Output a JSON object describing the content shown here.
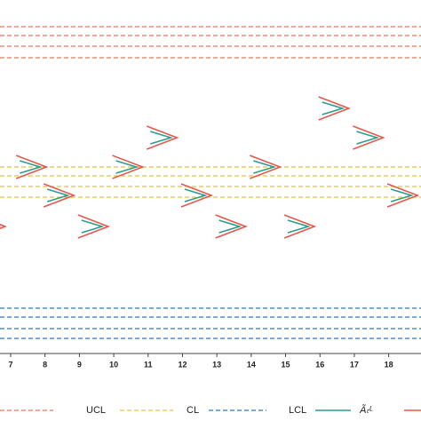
{
  "chart_data": {
    "type": "control",
    "xlim": [
      6.69,
      18.94
    ],
    "ylim": [
      0,
      100
    ],
    "xticks": [
      7,
      8,
      9,
      10,
      11,
      12,
      13,
      14,
      15,
      16,
      17,
      18
    ],
    "limits": [
      {
        "name": "UCL",
        "color": "#e8735a",
        "levels": [
          92.5,
          90,
          87,
          83.75
        ]
      },
      {
        "name": "CL",
        "color": "#e8c23a",
        "levels": [
          53,
          50.5,
          47.5,
          44.5
        ]
      },
      {
        "name": "LCL",
        "color": "#2f78b4",
        "levels": [
          13.25,
          10.75,
          7.5,
          4.75
        ]
      }
    ],
    "series": [
      {
        "name": "Ãₜᴸ",
        "color": "#2a9d8f",
        "outer_color": "#e8584a",
        "x": [
          6.4,
          7.6,
          8.4,
          9.4,
          10.4,
          11.4,
          12.4,
          13.4,
          14.4,
          15.4,
          16.4,
          17.4,
          18.4
        ],
        "values": [
          36.25,
          53,
          45,
          36.25,
          53,
          61.25,
          45,
          36.25,
          53,
          36.25,
          69.5,
          61.25,
          45
        ]
      }
    ]
  }
}
